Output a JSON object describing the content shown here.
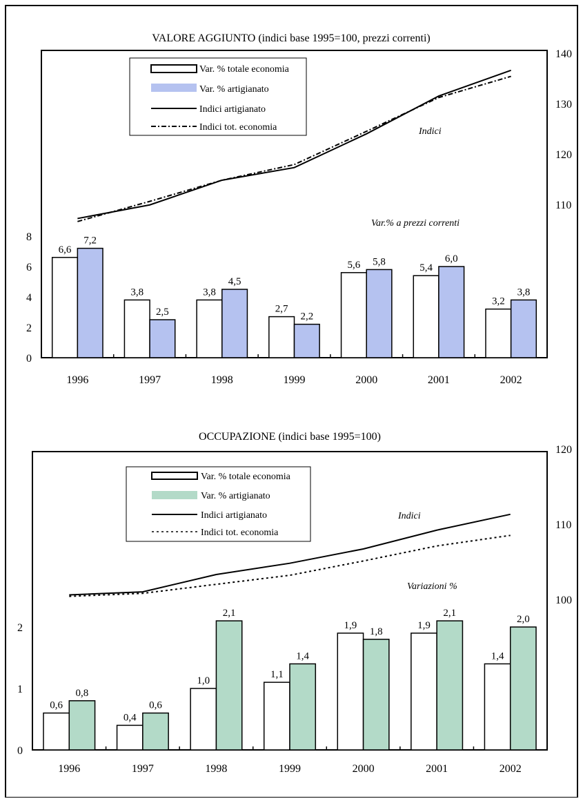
{
  "chart_data": [
    {
      "type": "bar",
      "title": "VALORE AGGIUNTO (indici base 1995=100, prezzi correnti)",
      "categories": [
        "1996",
        "1997",
        "1998",
        "1999",
        "2000",
        "2001",
        "2002"
      ],
      "left_axis": {
        "ticks": [
          "0",
          "2",
          "4",
          "6",
          "8"
        ],
        "ylim": [
          0,
          8
        ]
      },
      "right_axis": {
        "ticks": [
          "110",
          "120",
          "130",
          "140"
        ]
      },
      "bar_series": [
        {
          "name": "Var. % totale economia",
          "values": [
            6.6,
            3.8,
            3.8,
            2.7,
            5.6,
            5.4,
            3.2
          ],
          "labels": [
            "6,6",
            "3,8",
            "3,8",
            "2,7",
            "5,6",
            "5,4",
            "3,2"
          ],
          "color": "#ffffff"
        },
        {
          "name": "Var. % artigianato",
          "values": [
            7.2,
            2.5,
            4.5,
            2.2,
            5.8,
            6.0,
            3.8
          ],
          "labels": [
            "7,2",
            "2,5",
            "4,5",
            "2,2",
            "5,8",
            "6,0",
            "3,8"
          ],
          "color": "#b5c2f0"
        }
      ],
      "line_series": [
        {
          "name": "Indici artigianato",
          "values": [
            107.2,
            109.9,
            114.8,
            117.3,
            124.0,
            131.5,
            136.6
          ],
          "style": "solid"
        },
        {
          "name": "Indici tot. economia",
          "values": [
            106.6,
            110.6,
            114.8,
            117.9,
            124.5,
            131.2,
            135.4
          ],
          "style": "dashdot"
        }
      ],
      "annotations": [
        "Indici",
        "Var.% a prezzi correnti"
      ],
      "legend": "top-left"
    },
    {
      "type": "bar",
      "title": "OCCUPAZIONE (indici base 1995=100)",
      "categories": [
        "1996",
        "1997",
        "1998",
        "1999",
        "2000",
        "2001",
        "2002"
      ],
      "left_axis": {
        "ticks": [
          "0",
          "1",
          "2"
        ],
        "ylim": [
          0,
          2.7
        ]
      },
      "right_axis": {
        "ticks": [
          "100",
          "110",
          "120"
        ]
      },
      "bar_series": [
        {
          "name": "Var. % totale economia",
          "values": [
            0.6,
            0.4,
            1.0,
            1.1,
            1.9,
            1.9,
            1.4
          ],
          "labels": [
            "0,6",
            "0,4",
            "1,0",
            "1,1",
            "1,9",
            "1,9",
            "1,4"
          ],
          "color": "#ffffff"
        },
        {
          "name": "Var. % artigianato",
          "values": [
            0.8,
            0.6,
            2.1,
            1.4,
            1.8,
            2.1,
            2.0
          ],
          "labels": [
            "0,8",
            "0,6",
            "2,1",
            "1,4",
            "1,8",
            "2,1",
            "2,0"
          ],
          "color": "#b3dac8"
        }
      ],
      "line_series": [
        {
          "name": "Indici artigianato",
          "values": [
            100.6,
            101.0,
            103.3,
            104.8,
            106.7,
            109.2,
            111.3
          ],
          "style": "solid"
        },
        {
          "name": "Indici tot. economia",
          "values": [
            100.4,
            100.8,
            102.0,
            103.2,
            105.1,
            107.1,
            108.5
          ],
          "style": "dotted"
        }
      ],
      "annotations": [
        "Indici",
        "Variazioni %"
      ],
      "legend": "top-left"
    }
  ]
}
